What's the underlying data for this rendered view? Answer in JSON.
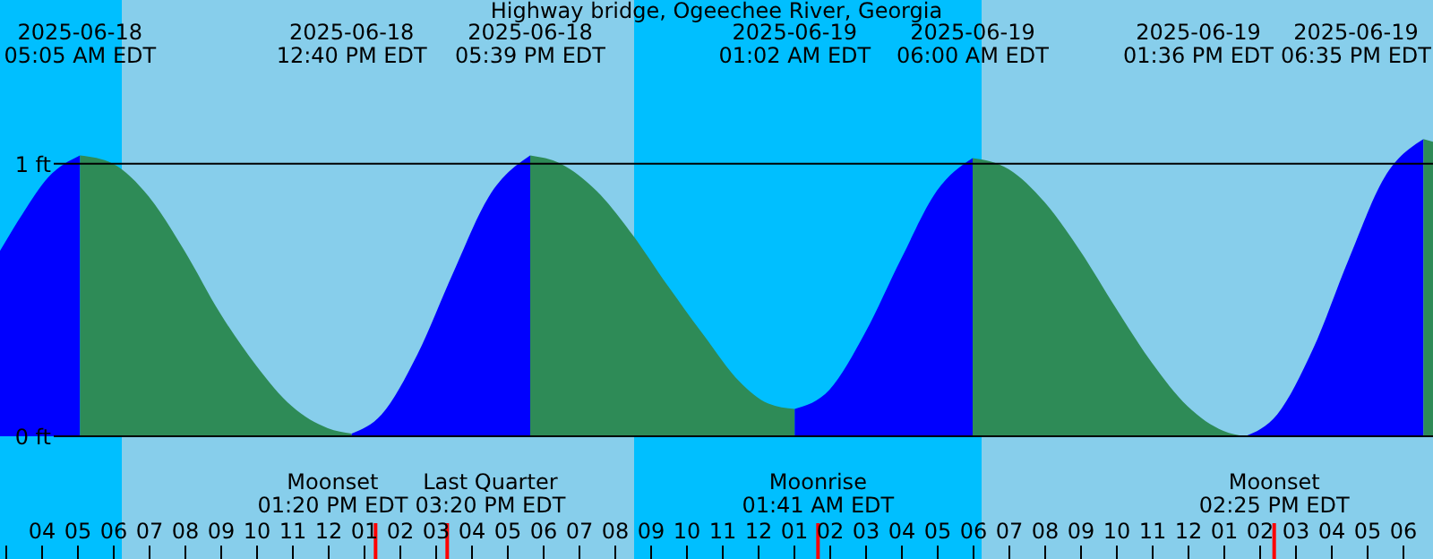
{
  "chart_data": {
    "type": "area",
    "title": "Highway bridge, Ogeechee River, Georgia",
    "xlim": [
      "2025-06-18T02:51",
      "2025-06-19T18:51"
    ],
    "ylim": [
      -0.45,
      1.6
    ],
    "yticks": [
      {
        "value": 0,
        "label": "0 ft"
      },
      {
        "value": 1,
        "label": "1 ft"
      }
    ],
    "xticks": [
      {
        "value": "2025-06-18T03:00",
        "label": null
      },
      {
        "value": "2025-06-18T04:00",
        "label": "04"
      },
      {
        "value": "2025-06-18T05:00",
        "label": "05"
      },
      {
        "value": "2025-06-18T06:00",
        "label": "06"
      },
      {
        "value": "2025-06-18T07:00",
        "label": "07"
      },
      {
        "value": "2025-06-18T08:00",
        "label": "08"
      },
      {
        "value": "2025-06-18T09:00",
        "label": "09"
      },
      {
        "value": "2025-06-18T10:00",
        "label": "10"
      },
      {
        "value": "2025-06-18T11:00",
        "label": "11"
      },
      {
        "value": "2025-06-18T12:00",
        "label": "12"
      },
      {
        "value": "2025-06-18T13:00",
        "label": "01"
      },
      {
        "value": "2025-06-18T14:00",
        "label": "02"
      },
      {
        "value": "2025-06-18T15:00",
        "label": "03"
      },
      {
        "value": "2025-06-18T16:00",
        "label": "04"
      },
      {
        "value": "2025-06-18T17:00",
        "label": "05"
      },
      {
        "value": "2025-06-18T18:00",
        "label": "06"
      },
      {
        "value": "2025-06-18T19:00",
        "label": "07"
      },
      {
        "value": "2025-06-18T20:00",
        "label": "08"
      },
      {
        "value": "2025-06-18T21:00",
        "label": "09"
      },
      {
        "value": "2025-06-18T22:00",
        "label": "10"
      },
      {
        "value": "2025-06-18T23:00",
        "label": "11"
      },
      {
        "value": "2025-06-19T00:00",
        "label": "12"
      },
      {
        "value": "2025-06-19T01:00",
        "label": "01"
      },
      {
        "value": "2025-06-19T02:00",
        "label": "02"
      },
      {
        "value": "2025-06-19T03:00",
        "label": "03"
      },
      {
        "value": "2025-06-19T04:00",
        "label": "04"
      },
      {
        "value": "2025-06-19T05:00",
        "label": "05"
      },
      {
        "value": "2025-06-19T06:00",
        "label": "06"
      },
      {
        "value": "2025-06-19T07:00",
        "label": "07"
      },
      {
        "value": "2025-06-19T08:00",
        "label": "08"
      },
      {
        "value": "2025-06-19T09:00",
        "label": "09"
      },
      {
        "value": "2025-06-19T10:00",
        "label": "10"
      },
      {
        "value": "2025-06-19T11:00",
        "label": "11"
      },
      {
        "value": "2025-06-19T12:00",
        "label": "12"
      },
      {
        "value": "2025-06-19T13:00",
        "label": "01"
      },
      {
        "value": "2025-06-19T14:00",
        "label": "02"
      },
      {
        "value": "2025-06-19T15:00",
        "label": "03"
      },
      {
        "value": "2025-06-19T16:00",
        "label": "04"
      },
      {
        "value": "2025-06-19T17:00",
        "label": "05"
      },
      {
        "value": "2025-06-19T18:00",
        "label": "06"
      }
    ],
    "grid": "y",
    "series": [
      {
        "color": "#0000ff",
        "x": [
          "2025-06-18T02:51",
          "2025-06-18T03:30",
          "2025-06-18T04:12",
          "2025-06-18T05:05"
        ],
        "values": [
          0.68,
          0.82,
          0.95,
          1.03
        ]
      },
      {
        "color": "#2e8b57",
        "x": [
          "2025-06-18T05:05",
          "2025-06-18T06:00",
          "2025-06-18T07:00",
          "2025-06-18T08:00",
          "2025-06-18T09:00",
          "2025-06-18T10:00",
          "2025-06-18T11:00",
          "2025-06-18T12:00",
          "2025-06-18T12:40"
        ],
        "values": [
          1.03,
          1.0,
          0.88,
          0.68,
          0.45,
          0.26,
          0.11,
          0.03,
          0.01
        ]
      },
      {
        "color": "#0000ff",
        "x": [
          "2025-06-18T12:40",
          "2025-06-18T13:30",
          "2025-06-18T14:30",
          "2025-06-18T15:30",
          "2025-06-18T16:30",
          "2025-06-18T17:39"
        ],
        "values": [
          0.01,
          0.08,
          0.3,
          0.6,
          0.88,
          1.03
        ]
      },
      {
        "color": "#2e8b57",
        "x": [
          "2025-06-18T17:39",
          "2025-06-18T18:30",
          "2025-06-18T19:30",
          "2025-06-18T20:30",
          "2025-06-18T21:30",
          "2025-06-18T22:30",
          "2025-06-18T23:30",
          "2025-06-19T00:18",
          "2025-06-19T01:02"
        ],
        "values": [
          1.03,
          1.0,
          0.9,
          0.74,
          0.55,
          0.37,
          0.2,
          0.12,
          0.1
        ]
      },
      {
        "color": "#0000ff",
        "x": [
          "2025-06-19T01:02",
          "2025-06-19T02:00",
          "2025-06-19T03:00",
          "2025-06-19T04:00",
          "2025-06-19T05:00",
          "2025-06-19T06:00"
        ],
        "values": [
          0.1,
          0.17,
          0.38,
          0.65,
          0.9,
          1.02
        ]
      },
      {
        "color": "#2e8b57",
        "x": [
          "2025-06-19T06:00",
          "2025-06-19T07:00",
          "2025-06-19T08:00",
          "2025-06-19T09:00",
          "2025-06-19T10:00",
          "2025-06-19T11:00",
          "2025-06-19T12:00",
          "2025-06-19T13:00",
          "2025-06-19T13:36"
        ],
        "values": [
          1.02,
          0.98,
          0.86,
          0.68,
          0.47,
          0.27,
          0.11,
          0.02,
          0.0
        ]
      },
      {
        "color": "#0000ff",
        "x": [
          "2025-06-19T13:36",
          "2025-06-19T14:30",
          "2025-06-19T15:30",
          "2025-06-19T16:30",
          "2025-06-19T17:30",
          "2025-06-19T18:35"
        ],
        "values": [
          0.0,
          0.08,
          0.32,
          0.65,
          0.95,
          1.09
        ]
      },
      {
        "color": "#2e8b57",
        "x": [
          "2025-06-19T18:35",
          "2025-06-19T18:51"
        ],
        "values": [
          1.09,
          1.08
        ]
      }
    ],
    "bands": [
      {
        "axis": "x",
        "from": "2025-06-18T02:51",
        "to": "2025-06-18T06:15",
        "color": "#00bfff"
      },
      {
        "axis": "x",
        "from": "2025-06-18T06:15",
        "to": "2025-06-18T20:33",
        "color": "#87ceeb"
      },
      {
        "axis": "x",
        "from": "2025-06-18T20:33",
        "to": "2025-06-19T06:15",
        "color": "#00bfff"
      },
      {
        "axis": "x",
        "from": "2025-06-19T06:15",
        "to": "2025-06-19T18:51",
        "color": "#87ceeb"
      }
    ],
    "ref_lines": [
      {
        "axis": "x",
        "value": "2025-06-18T13:20",
        "label": "Moonset\n01:20 PM EDT",
        "color": "#ff0000"
      },
      {
        "axis": "x",
        "value": "2025-06-18T15:20",
        "label": "Last Quarter\n03:20 PM EDT",
        "color": "#ff0000"
      },
      {
        "axis": "x",
        "value": "2025-06-19T01:41",
        "label": "Moonrise\n01:41 AM EDT",
        "color": "#ff0000"
      },
      {
        "axis": "x",
        "value": "2025-06-19T14:25",
        "label": "Moonset\n02:25 PM EDT",
        "color": "#ff0000"
      }
    ],
    "annotations": [
      "2025-06-18\n05:05 AM EDT",
      "2025-06-18\n12:40 PM EDT",
      "2025-06-18\n05:39 PM EDT",
      "2025-06-19\n01:02 AM EDT",
      "2025-06-19\n06:00 AM EDT",
      "2025-06-19\n01:36 PM EDT",
      "2025-06-19\n06:35 PM EDT"
    ]
  }
}
